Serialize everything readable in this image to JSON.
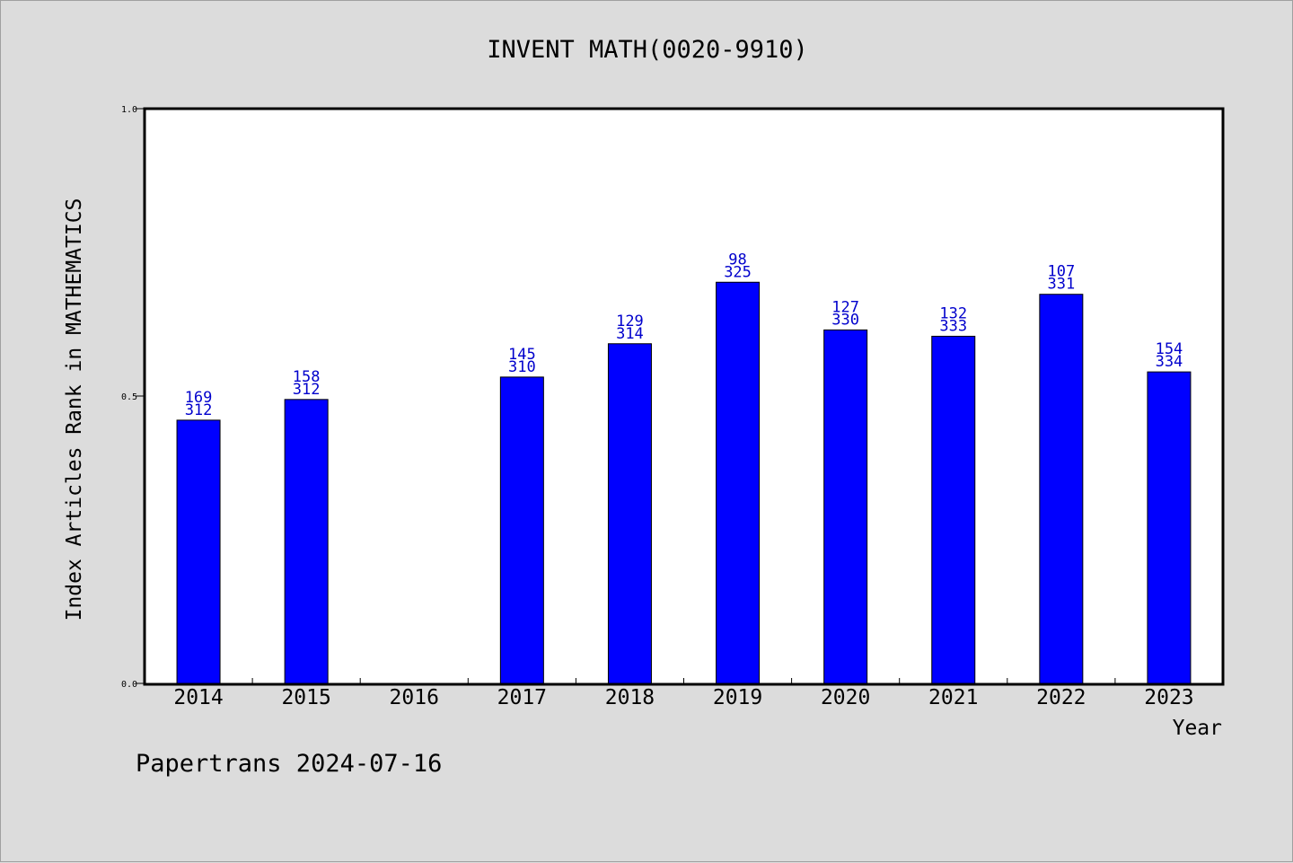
{
  "footer": {
    "credit": "Papertrans 2024-07-16"
  },
  "chart_data": {
    "type": "bar",
    "title": "INVENT MATH(0020-9910)",
    "xlabel": "Year",
    "ylabel": "Index Articles Rank in MATHEMATICS",
    "ylim": [
      0,
      1
    ],
    "yticks": [
      "0.0",
      "0.5",
      "1.0"
    ],
    "ytick_values": [
      0,
      0.5,
      1
    ],
    "grid": false,
    "colors": {
      "bar": "#0000ff",
      "label": "#0000cc",
      "background": "#dcdcdc",
      "plot": "#ffffff"
    },
    "categories": [
      "2014",
      "2015",
      "2016",
      "2017",
      "2018",
      "2019",
      "2020",
      "2021",
      "2022",
      "2023"
    ],
    "values": [
      0.458,
      0.494,
      null,
      0.533,
      0.591,
      0.698,
      0.615,
      0.604,
      0.677,
      0.542
    ],
    "rank_labels": [
      "169",
      "158",
      "",
      "145",
      "129",
      "98",
      "127",
      "132",
      "107",
      "154"
    ],
    "total_labels": [
      "312",
      "312",
      "",
      "310",
      "314",
      "325",
      "330",
      "333",
      "331",
      "334"
    ]
  }
}
